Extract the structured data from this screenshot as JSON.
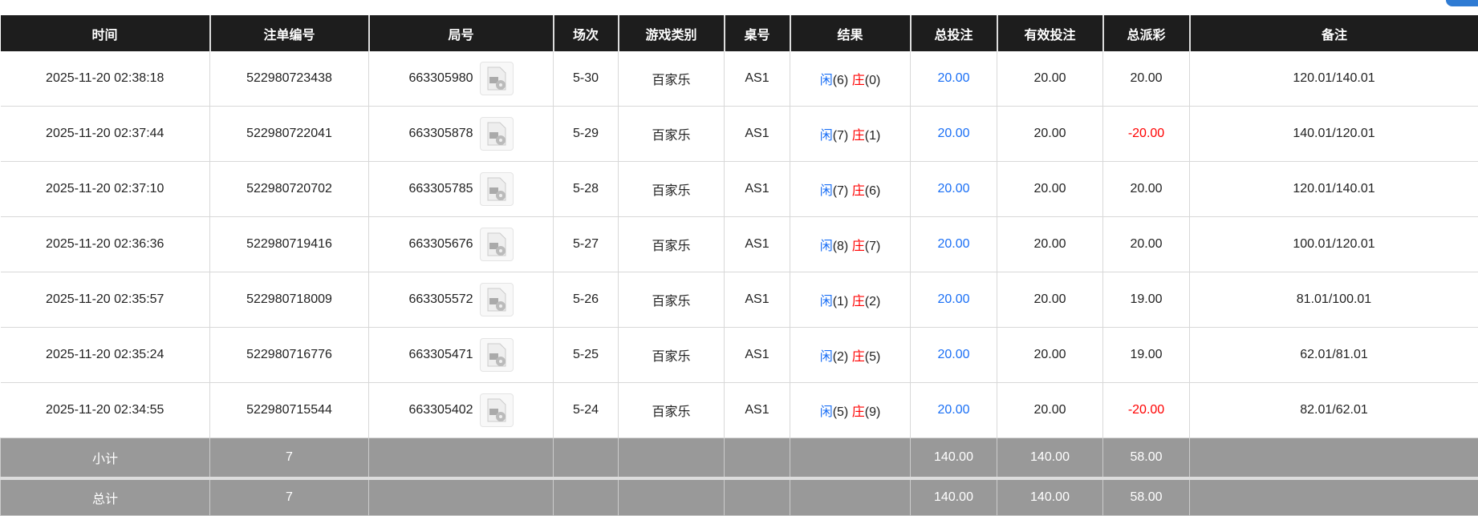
{
  "headers": [
    "时间",
    "注单编号",
    "局号",
    "场次",
    "游戏类别",
    "桌号",
    "结果",
    "总投注",
    "有效投注",
    "总派彩",
    "备注"
  ],
  "colors": {
    "player": "#1a6ff5",
    "banker": "#ff0000",
    "header_bg": "#1d1d1d",
    "summary_bg": "#999999"
  },
  "rows": [
    {
      "time": "2025-11-20 02:38:18",
      "bet_id": "522980723438",
      "round": "663305980",
      "shoe": "5-30",
      "game": "百家乐",
      "table": "AS1",
      "player_label": "闲",
      "player": "(6)",
      "banker_label": "庄",
      "banker": "(0)",
      "bet": "20.00",
      "valid": "20.00",
      "payout": "20.00",
      "payout_negative": false,
      "note": "120.01/140.01"
    },
    {
      "time": "2025-11-20 02:37:44",
      "bet_id": "522980722041",
      "round": "663305878",
      "shoe": "5-29",
      "game": "百家乐",
      "table": "AS1",
      "player_label": "闲",
      "player": "(7)",
      "banker_label": "庄",
      "banker": "(1)",
      "bet": "20.00",
      "valid": "20.00",
      "payout": "-20.00",
      "payout_negative": true,
      "note": "140.01/120.01"
    },
    {
      "time": "2025-11-20 02:37:10",
      "bet_id": "522980720702",
      "round": "663305785",
      "shoe": "5-28",
      "game": "百家乐",
      "table": "AS1",
      "player_label": "闲",
      "player": "(7)",
      "banker_label": "庄",
      "banker": "(6)",
      "bet": "20.00",
      "valid": "20.00",
      "payout": "20.00",
      "payout_negative": false,
      "note": "120.01/140.01"
    },
    {
      "time": "2025-11-20 02:36:36",
      "bet_id": "522980719416",
      "round": "663305676",
      "shoe": "5-27",
      "game": "百家乐",
      "table": "AS1",
      "player_label": "闲",
      "player": "(8)",
      "banker_label": "庄",
      "banker": "(7)",
      "bet": "20.00",
      "valid": "20.00",
      "payout": "20.00",
      "payout_negative": false,
      "note": "100.01/120.01"
    },
    {
      "time": "2025-11-20 02:35:57",
      "bet_id": "522980718009",
      "round": "663305572",
      "shoe": "5-26",
      "game": "百家乐",
      "table": "AS1",
      "player_label": "闲",
      "player": "(1)",
      "banker_label": "庄",
      "banker": "(2)",
      "bet": "20.00",
      "valid": "20.00",
      "payout": "19.00",
      "payout_negative": false,
      "note": "81.01/100.01"
    },
    {
      "time": "2025-11-20 02:35:24",
      "bet_id": "522980716776",
      "round": "663305471",
      "shoe": "5-25",
      "game": "百家乐",
      "table": "AS1",
      "player_label": "闲",
      "player": "(2)",
      "banker_label": "庄",
      "banker": "(5)",
      "bet": "20.00",
      "valid": "20.00",
      "payout": "19.00",
      "payout_negative": false,
      "note": "62.01/81.01"
    },
    {
      "time": "2025-11-20 02:34:55",
      "bet_id": "522980715544",
      "round": "663305402",
      "shoe": "5-24",
      "game": "百家乐",
      "table": "AS1",
      "player_label": "闲",
      "player": "(5)",
      "banker_label": "庄",
      "banker": "(9)",
      "bet": "20.00",
      "valid": "20.00",
      "payout": "-20.00",
      "payout_negative": true,
      "note": "82.01/62.01"
    }
  ],
  "subtotal": {
    "label": "小计",
    "count": "7",
    "bet": "140.00",
    "valid": "140.00",
    "payout": "58.00"
  },
  "total": {
    "label": "总计",
    "count": "7",
    "bet": "140.00",
    "valid": "140.00",
    "payout": "58.00"
  }
}
